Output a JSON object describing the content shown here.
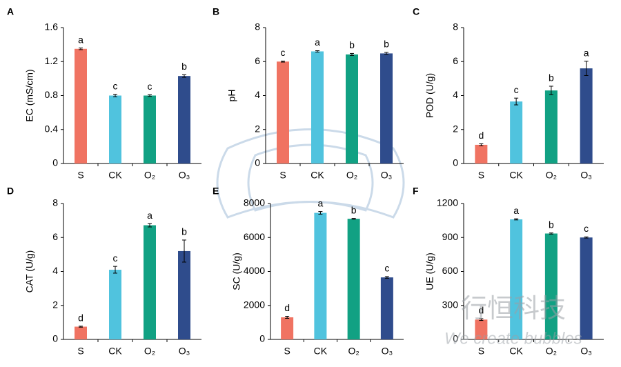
{
  "chart_data": [
    {
      "type": "bar",
      "panel": "A",
      "ylabel": "EC (mS/cm)",
      "categories": [
        "S",
        "CK",
        "O₂",
        "O₃"
      ],
      "values": [
        1.35,
        0.8,
        0.8,
        1.03
      ],
      "errors": [
        0.01,
        0.015,
        0.01,
        0.015
      ],
      "letters": [
        "a",
        "c",
        "c",
        "b"
      ],
      "colors": [
        "#f07362",
        "#50c3de",
        "#11a183",
        "#2f4c8c"
      ],
      "ylim": [
        0,
        1.6
      ],
      "yticks": [
        0,
        0.4,
        0.8,
        1.2,
        1.6
      ]
    },
    {
      "type": "bar",
      "panel": "B",
      "ylabel": "pH",
      "categories": [
        "S",
        "CK",
        "O₂",
        "O₃"
      ],
      "values": [
        6.0,
        6.6,
        6.42,
        6.48
      ],
      "errors": [
        0.03,
        0.04,
        0.06,
        0.06
      ],
      "letters": [
        "c",
        "a",
        "b",
        "b"
      ],
      "colors": [
        "#f07362",
        "#50c3de",
        "#11a183",
        "#2f4c8c"
      ],
      "ylim": [
        0,
        8
      ],
      "yticks": [
        0,
        2,
        4,
        6,
        8
      ]
    },
    {
      "type": "bar",
      "panel": "C",
      "ylabel": "POD (U/g)",
      "categories": [
        "S",
        "CK",
        "O₂",
        "O₃"
      ],
      "values": [
        1.1,
        3.65,
        4.3,
        5.6
      ],
      "errors": [
        0.06,
        0.2,
        0.25,
        0.42
      ],
      "letters": [
        "d",
        "c",
        "b",
        "a"
      ],
      "colors": [
        "#f07362",
        "#50c3de",
        "#11a183",
        "#2f4c8c"
      ],
      "ylim": [
        0,
        8
      ],
      "yticks": [
        0,
        2,
        4,
        6,
        8
      ]
    },
    {
      "type": "bar",
      "panel": "D",
      "ylabel": "CAT (U/g)",
      "categories": [
        "S",
        "CK",
        "O₂",
        "O₃"
      ],
      "values": [
        0.75,
        4.1,
        6.72,
        5.2
      ],
      "errors": [
        0.03,
        0.2,
        0.1,
        0.65
      ],
      "letters": [
        "d",
        "c",
        "a",
        "b"
      ],
      "colors": [
        "#f07362",
        "#50c3de",
        "#11a183",
        "#2f4c8c"
      ],
      "ylim": [
        0,
        8
      ],
      "yticks": [
        0,
        2,
        4,
        6,
        8
      ]
    },
    {
      "type": "bar",
      "panel": "E",
      "ylabel": "SC (U/g)",
      "categories": [
        "S",
        "CK",
        "O₂",
        "O₃"
      ],
      "values": [
        1300,
        7450,
        7100,
        3650
      ],
      "errors": [
        60,
        80,
        20,
        50
      ],
      "letters": [
        "d",
        "a",
        "b",
        "c"
      ],
      "colors": [
        "#f07362",
        "#50c3de",
        "#11a183",
        "#2f4c8c"
      ],
      "ylim": [
        0,
        8000
      ],
      "yticks": [
        0,
        2000,
        4000,
        6000,
        8000
      ]
    },
    {
      "type": "bar",
      "panel": "F",
      "ylabel": "UE (U/g)",
      "categories": [
        "S",
        "CK",
        "O₂",
        "O₃"
      ],
      "values": [
        175,
        1060,
        935,
        900
      ],
      "errors": [
        8,
        5,
        5,
        5
      ],
      "letters": [
        "d",
        "a",
        "b",
        "c"
      ],
      "colors": [
        "#f07362",
        "#50c3de",
        "#11a183",
        "#2f4c8c"
      ],
      "ylim": [
        0,
        1200
      ],
      "yticks": [
        0,
        300,
        600,
        900,
        1200
      ]
    }
  ],
  "watermark": {
    "title": "行恒科技",
    "slogan": "We create bubbles"
  }
}
